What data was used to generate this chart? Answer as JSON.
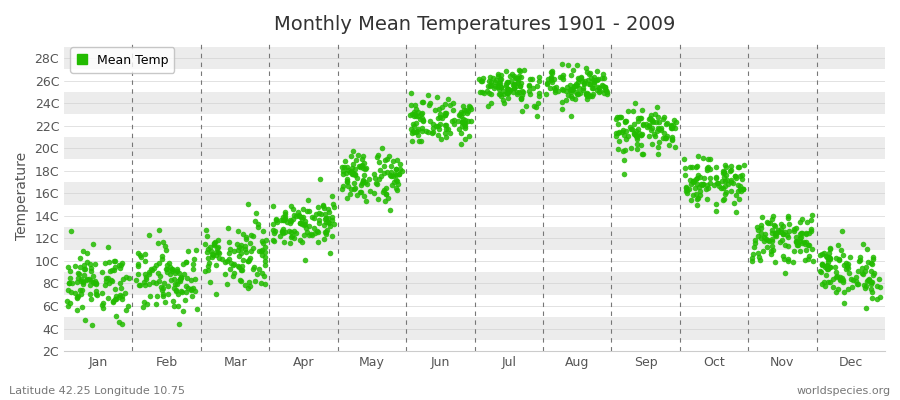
{
  "title": "Monthly Mean Temperatures 1901 - 2009",
  "ylabel": "Temperature",
  "xlabel_bottom_left": "Latitude 42.25 Longitude 10.75",
  "xlabel_bottom_right": "worldspecies.org",
  "dot_color": "#22bb00",
  "background_color": "#ffffff",
  "band_colors": [
    "#ffffff",
    "#ececec"
  ],
  "dashed_line_color": "#777777",
  "ytick_labels": [
    "2C",
    "4C",
    "6C",
    "8C",
    "10C",
    "12C",
    "14C",
    "16C",
    "18C",
    "20C",
    "22C",
    "24C",
    "26C",
    "28C"
  ],
  "ytick_values": [
    2,
    4,
    6,
    8,
    10,
    12,
    14,
    16,
    18,
    20,
    22,
    24,
    26,
    28
  ],
  "ylim": [
    2,
    29.5
  ],
  "months": [
    "Jan",
    "Feb",
    "Mar",
    "Apr",
    "May",
    "Jun",
    "Jul",
    "Aug",
    "Sep",
    "Oct",
    "Nov",
    "Dec"
  ],
  "month_centers": [
    0.5,
    1.5,
    2.5,
    3.5,
    4.5,
    5.5,
    6.5,
    7.5,
    8.5,
    9.5,
    10.5,
    11.5
  ],
  "month_edges": [
    0,
    1,
    2,
    3,
    4,
    5,
    6,
    7,
    8,
    9,
    10,
    11,
    12
  ],
  "monthly_mean": [
    8.0,
    8.5,
    10.5,
    13.5,
    17.5,
    22.5,
    25.5,
    25.5,
    21.5,
    17.0,
    12.0,
    9.0
  ],
  "monthly_std": [
    1.5,
    1.5,
    1.5,
    1.0,
    1.2,
    1.0,
    0.8,
    0.8,
    1.0,
    1.0,
    1.0,
    1.2
  ],
  "n_years": 109,
  "marker_size": 4,
  "legend_label": "Mean Temp",
  "title_fontsize": 14,
  "axis_fontsize": 10,
  "tick_fontsize": 9,
  "footer_fontsize": 8
}
